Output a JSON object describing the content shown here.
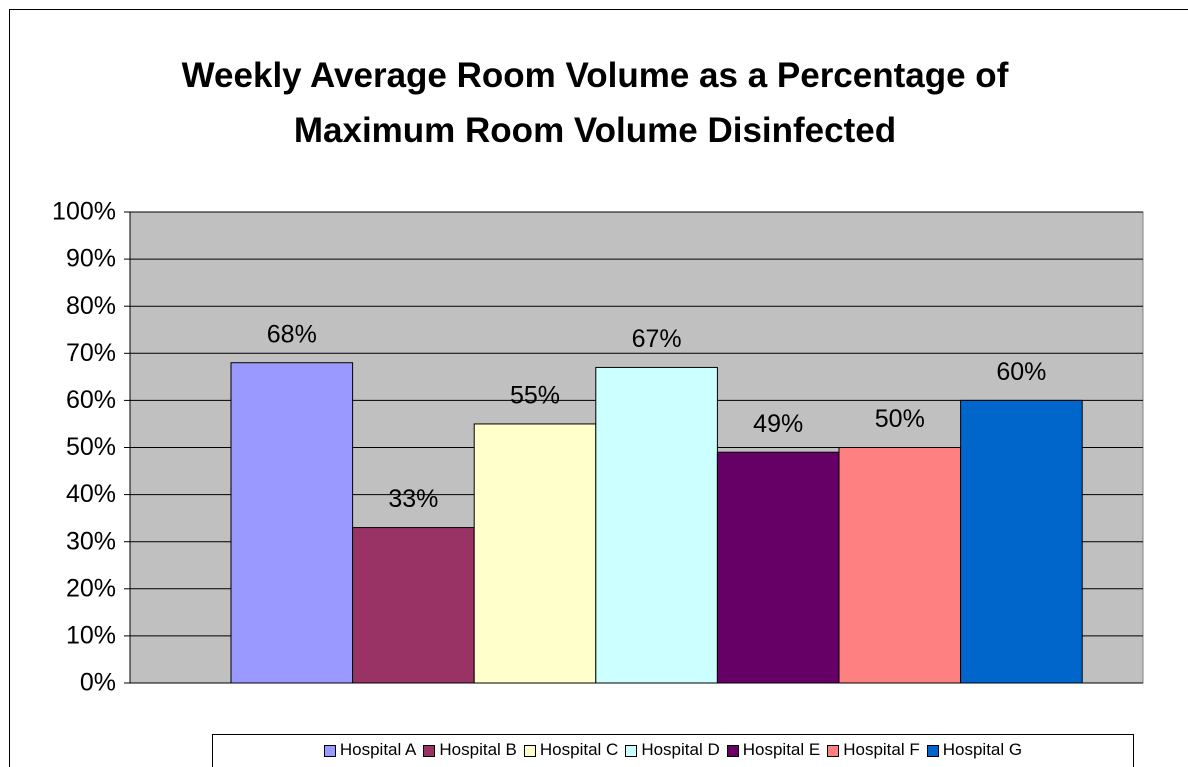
{
  "chart_data": {
    "type": "bar",
    "title": "Weekly Average Room Volume as a Percentage of Maximum Room Volume Disinfected",
    "series": [
      {
        "name": "Hospital A",
        "color": "#9999ff",
        "values": [
          68
        ],
        "value_labels": [
          "68%"
        ]
      },
      {
        "name": "Hospital B",
        "color": "#993366",
        "values": [
          33
        ],
        "value_labels": [
          "33%"
        ]
      },
      {
        "name": "Hospital C",
        "color": "#ffffcc",
        "values": [
          55
        ],
        "value_labels": [
          "55%"
        ]
      },
      {
        "name": "Hospital D",
        "color": "#ccffff",
        "values": [
          67
        ],
        "value_labels": [
          "67%"
        ]
      },
      {
        "name": "Hospital E",
        "color": "#660066",
        "values": [
          49
        ],
        "value_labels": [
          "49%"
        ]
      },
      {
        "name": "Hospital F",
        "color": "#ff8080",
        "values": [
          50
        ],
        "value_labels": [
          "50%"
        ]
      },
      {
        "name": "Hospital G",
        "color": "#0066cc",
        "values": [
          60
        ],
        "value_labels": [
          "60%"
        ]
      }
    ],
    "ylim": [
      0,
      100
    ],
    "yticks": [
      {
        "value": 0,
        "label": "0%"
      },
      {
        "value": 10,
        "label": "10%"
      },
      {
        "value": 20,
        "label": "20%"
      },
      {
        "value": 30,
        "label": "30%"
      },
      {
        "value": 40,
        "label": "40%"
      },
      {
        "value": 50,
        "label": "50%"
      },
      {
        "value": 60,
        "label": "60%"
      },
      {
        "value": 70,
        "label": "70%"
      },
      {
        "value": 80,
        "label": "80%"
      },
      {
        "value": 90,
        "label": "90%"
      },
      {
        "value": 100,
        "label": "100%"
      }
    ],
    "grid": true,
    "plot_background": "#c0c0c0",
    "legend": "bottom"
  }
}
